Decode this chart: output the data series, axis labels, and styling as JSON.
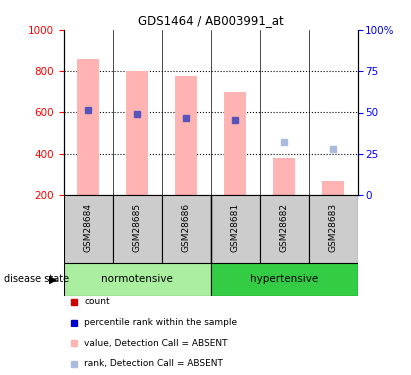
{
  "title": "GDS1464 / AB003991_at",
  "samples": [
    "GSM28684",
    "GSM28685",
    "GSM28686",
    "GSM28681",
    "GSM28682",
    "GSM28683"
  ],
  "bar_values": [
    860,
    800,
    775,
    700,
    380,
    270
  ],
  "bar_bottom": 200,
  "dot_values": [
    610,
    595,
    575,
    565,
    null,
    null
  ],
  "absent_dot": [
    null,
    null,
    null,
    null,
    455,
    425
  ],
  "ylim_left": [
    200,
    1000
  ],
  "ylim_right": [
    0,
    100
  ],
  "yticks_left": [
    200,
    400,
    600,
    800,
    1000
  ],
  "yticks_right": [
    0,
    25,
    50,
    75,
    100
  ],
  "grid_lines": [
    400,
    600,
    800
  ],
  "bar_color": "#FFB3B3",
  "dot_color_present": "#5555BB",
  "dot_color_absent": "#AABBDD",
  "norm_color": "#AAEEA0",
  "hyper_color": "#33CC44",
  "label_bg": "#CCCCCC",
  "legend_items": [
    {
      "color": "#CC0000",
      "label": "count"
    },
    {
      "color": "#0000CC",
      "label": "percentile rank within the sample"
    },
    {
      "color": "#FFB3B3",
      "label": "value, Detection Call = ABSENT"
    },
    {
      "color": "#AABBDD",
      "label": "rank, Detection Call = ABSENT"
    }
  ]
}
